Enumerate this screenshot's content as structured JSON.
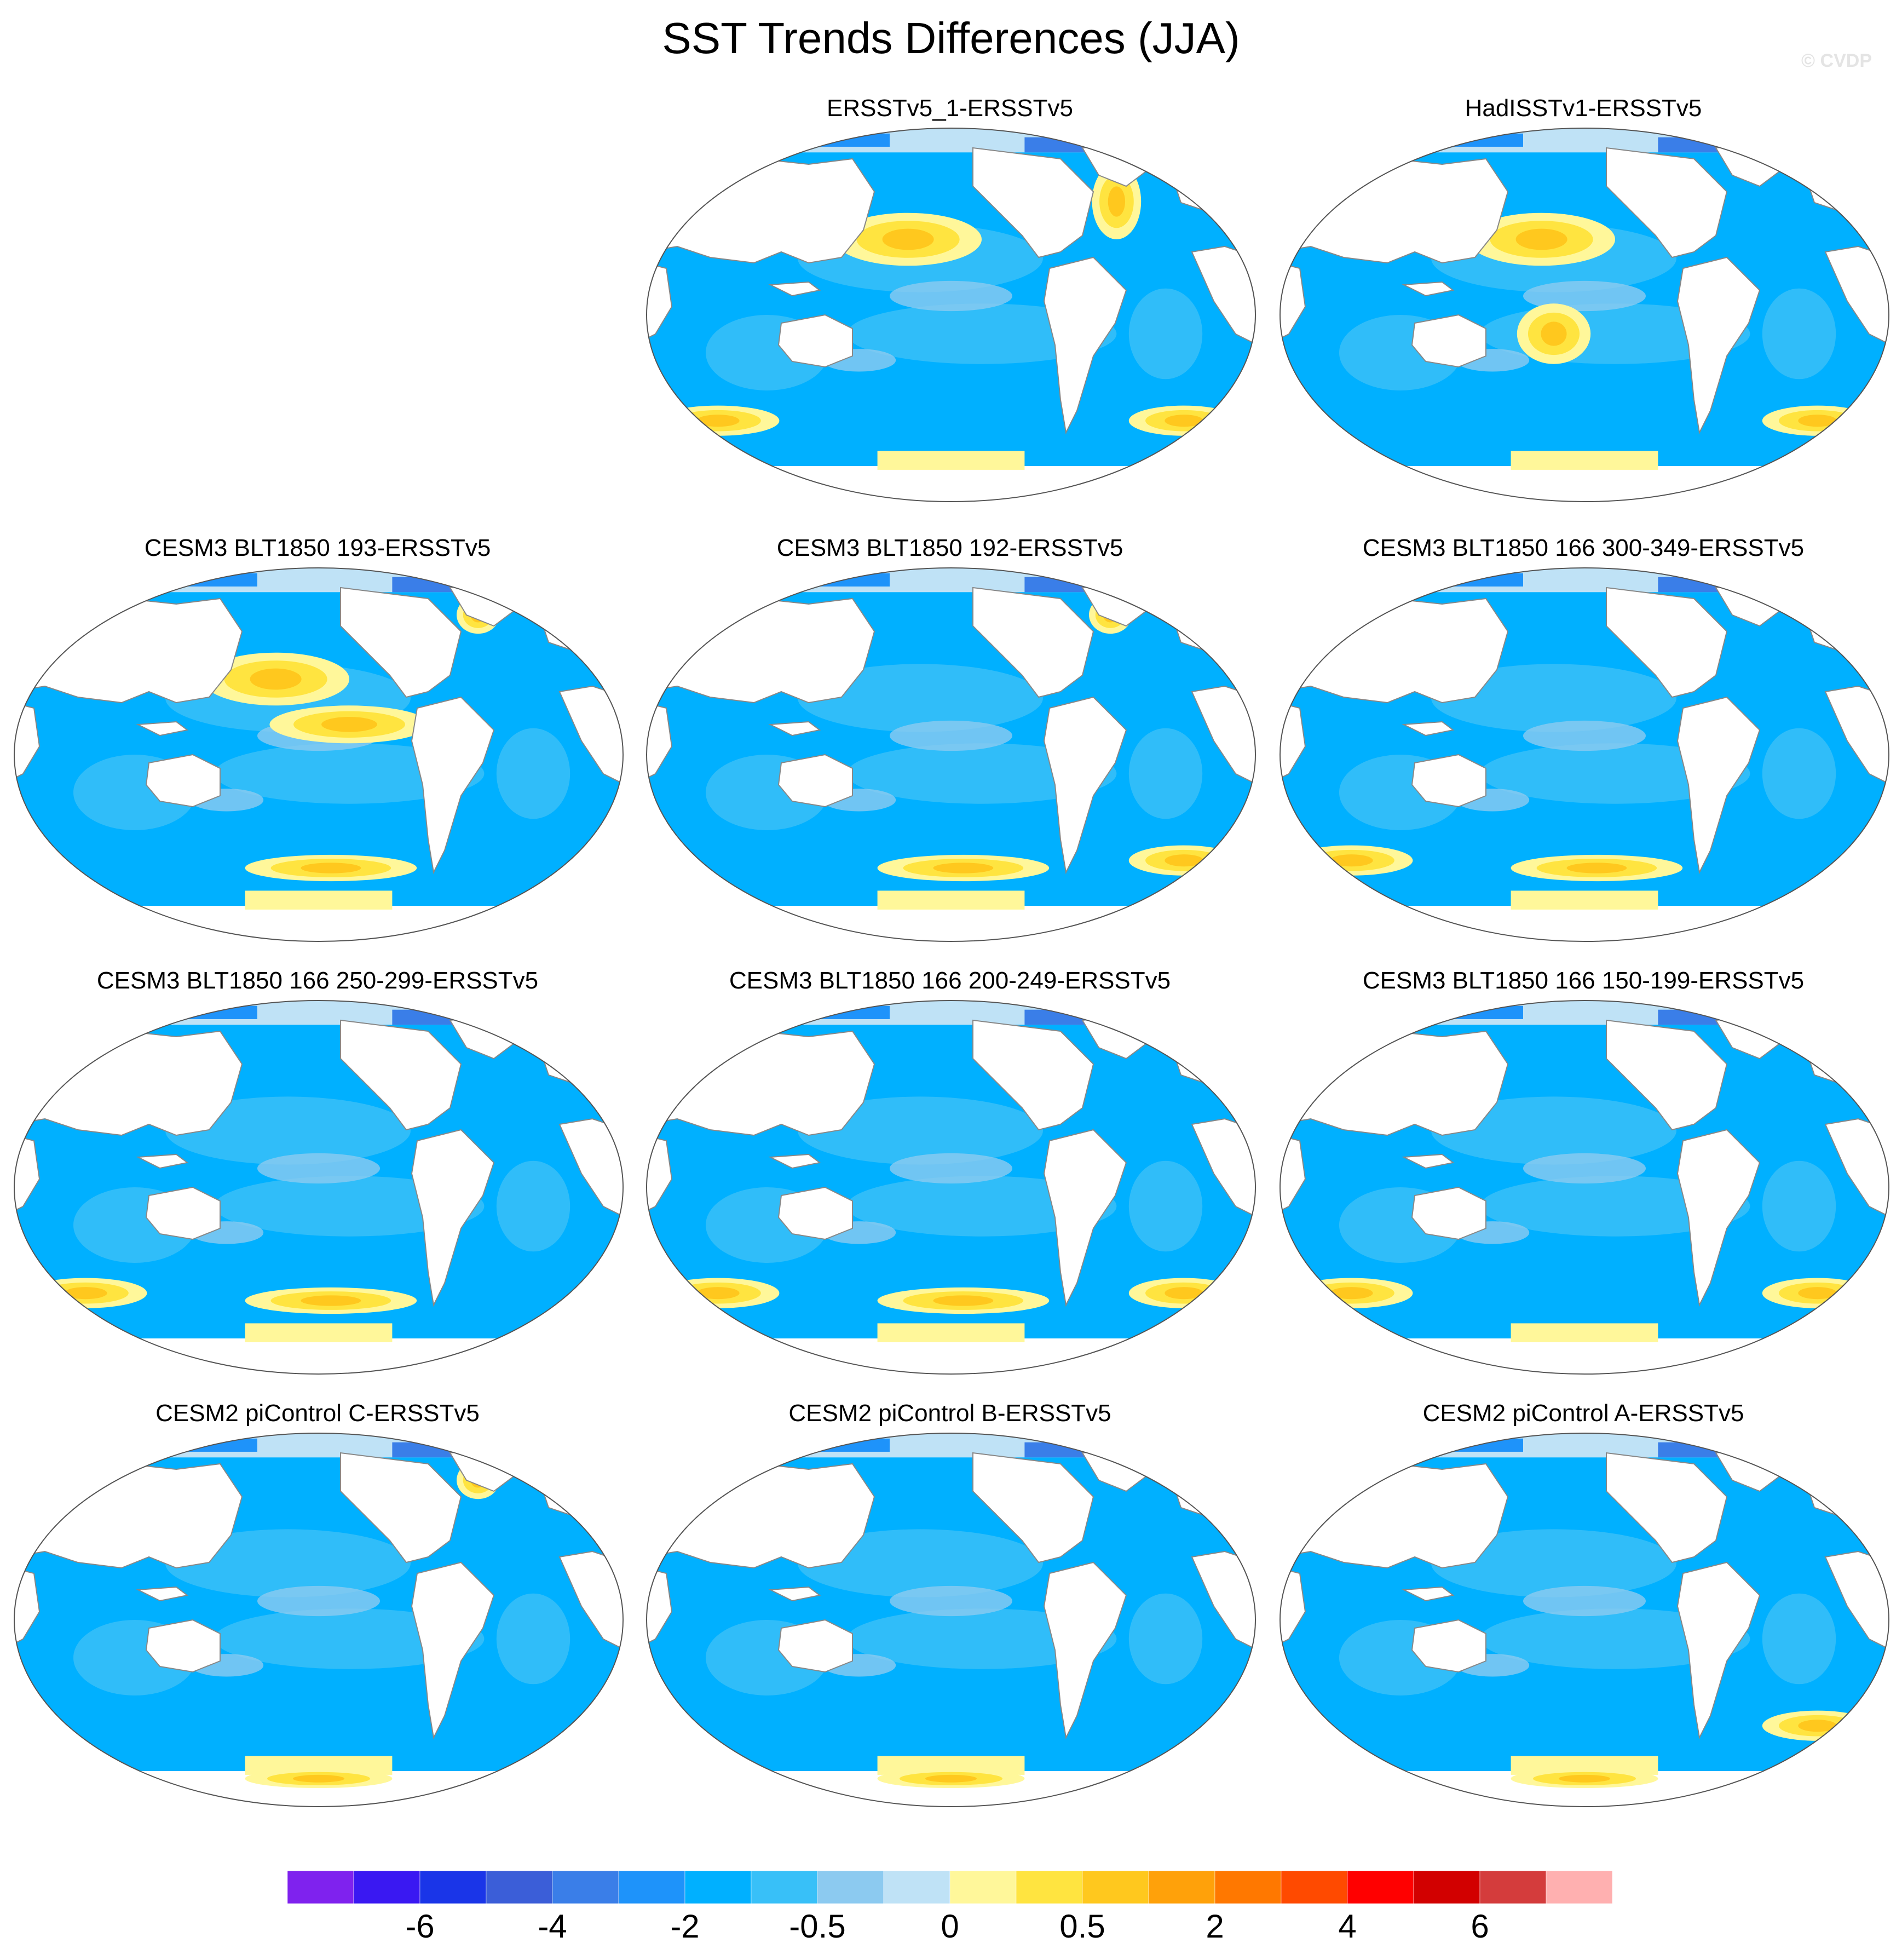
{
  "title": "SST Trends Differences (JJA)",
  "watermark": "© CVDP",
  "panels": [
    {
      "title": "ERSSTv5_1-ERSSTv5",
      "accent_regions": [
        "north-pacific",
        "north-atlantic",
        "southern-ocean-indian",
        "southern-ocean-atlantic"
      ]
    },
    {
      "title": "HadISSTv1-ERSSTv5",
      "accent_regions": [
        "north-pacific",
        "south-pacific",
        "southern-ocean-atlantic"
      ]
    },
    {
      "title": "CESM3 BLT1850 193-ERSSTv5",
      "accent_regions": [
        "north-pacific",
        "tropical-pacific",
        "southern-ocean-pacific",
        "gulf-of-alaska"
      ]
    },
    {
      "title": "CESM3 BLT1850 192-ERSSTv5",
      "accent_regions": [
        "southern-ocean-pacific",
        "southern-ocean-atlantic",
        "gulf-of-alaska"
      ]
    },
    {
      "title": "CESM3 BLT1850 166 300-349-ERSSTv5",
      "accent_regions": [
        "southern-ocean-pacific",
        "southern-ocean-indian"
      ]
    },
    {
      "title": "CESM3 BLT1850 166 250-299-ERSSTv5",
      "accent_regions": [
        "southern-ocean-indian",
        "southern-ocean-pacific"
      ]
    },
    {
      "title": "CESM3 BLT1850 166 200-249-ERSSTv5",
      "accent_regions": [
        "southern-ocean-indian",
        "southern-ocean-atlantic",
        "southern-ocean-pacific"
      ]
    },
    {
      "title": "CESM3 BLT1850 166 150-199-ERSSTv5",
      "accent_regions": [
        "southern-ocean-indian",
        "southern-ocean-atlantic"
      ]
    },
    {
      "title": "CESM2 piControl C-ERSSTv5",
      "accent_regions": [
        "gulf-of-alaska",
        "antarctic-coast"
      ]
    },
    {
      "title": "CESM2 piControl B-ERSSTv5",
      "accent_regions": [
        "antarctic-coast"
      ]
    },
    {
      "title": "CESM2 piControl A-ERSSTv5",
      "accent_regions": [
        "southern-ocean-atlantic",
        "antarctic-coast"
      ]
    }
  ],
  "colorbar": {
    "colors": [
      "#7f22ee",
      "#3a18f2",
      "#1a35e8",
      "#3b5ed8",
      "#3a7ee8",
      "#1e93fa",
      "#00b0ff",
      "#38c0f8",
      "#8ccaf0",
      "#bfe2f6",
      "#fff79a",
      "#ffe440",
      "#ffc81e",
      "#ffa10a",
      "#ff7800",
      "#ff4a00",
      "#ff0000",
      "#d20000",
      "#d43c3c",
      "#ffb0b0"
    ],
    "labels": [
      "-6",
      "-4",
      "-2",
      "-0.5",
      "0",
      "0.5",
      "2",
      "4",
      "6"
    ]
  }
}
